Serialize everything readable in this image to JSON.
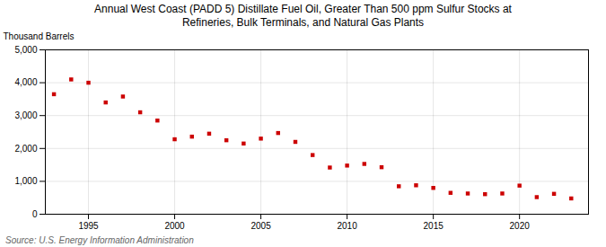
{
  "chart_data": {
    "type": "scatter",
    "title": "Annual West Coast (PADD 5) Distillate Fuel Oil, Greater Than 500 ppm Sulfur Stocks at\nRefineries, Bulk Terminals, and Natural Gas Plants",
    "ylabel": "Thousand Barrels",
    "source": "Source: U.S. Energy Information Administration",
    "x": [
      1993,
      1994,
      1995,
      1996,
      1997,
      1998,
      1999,
      2000,
      2001,
      2002,
      2003,
      2004,
      2005,
      2006,
      2007,
      2008,
      2009,
      2010,
      2011,
      2012,
      2013,
      2014,
      2015,
      2016,
      2017,
      2018,
      2019,
      2020,
      2021,
      2022,
      2023
    ],
    "values": [
      3650,
      4100,
      4000,
      3400,
      3580,
      3100,
      2850,
      2280,
      2360,
      2450,
      2250,
      2150,
      2300,
      2470,
      2200,
      1800,
      1420,
      1480,
      1530,
      1430,
      850,
      880,
      800,
      650,
      630,
      610,
      630,
      870,
      520,
      620,
      480
    ],
    "color": "#cc0000",
    "marker": "square",
    "xlim": [
      1992.5,
      2024
    ],
    "xticks": [
      1995,
      2000,
      2005,
      2010,
      2015,
      2020
    ],
    "ylim": [
      0,
      5000
    ],
    "yticks": [
      0,
      {
        "value": 1000,
        "label": "1,000"
      },
      {
        "value": 2000,
        "label": "2,000"
      },
      {
        "value": 3000,
        "label": "3,000"
      },
      {
        "value": 4000,
        "label": "4,000"
      },
      {
        "value": 5000,
        "label": "5,000"
      }
    ],
    "grid": true
  }
}
